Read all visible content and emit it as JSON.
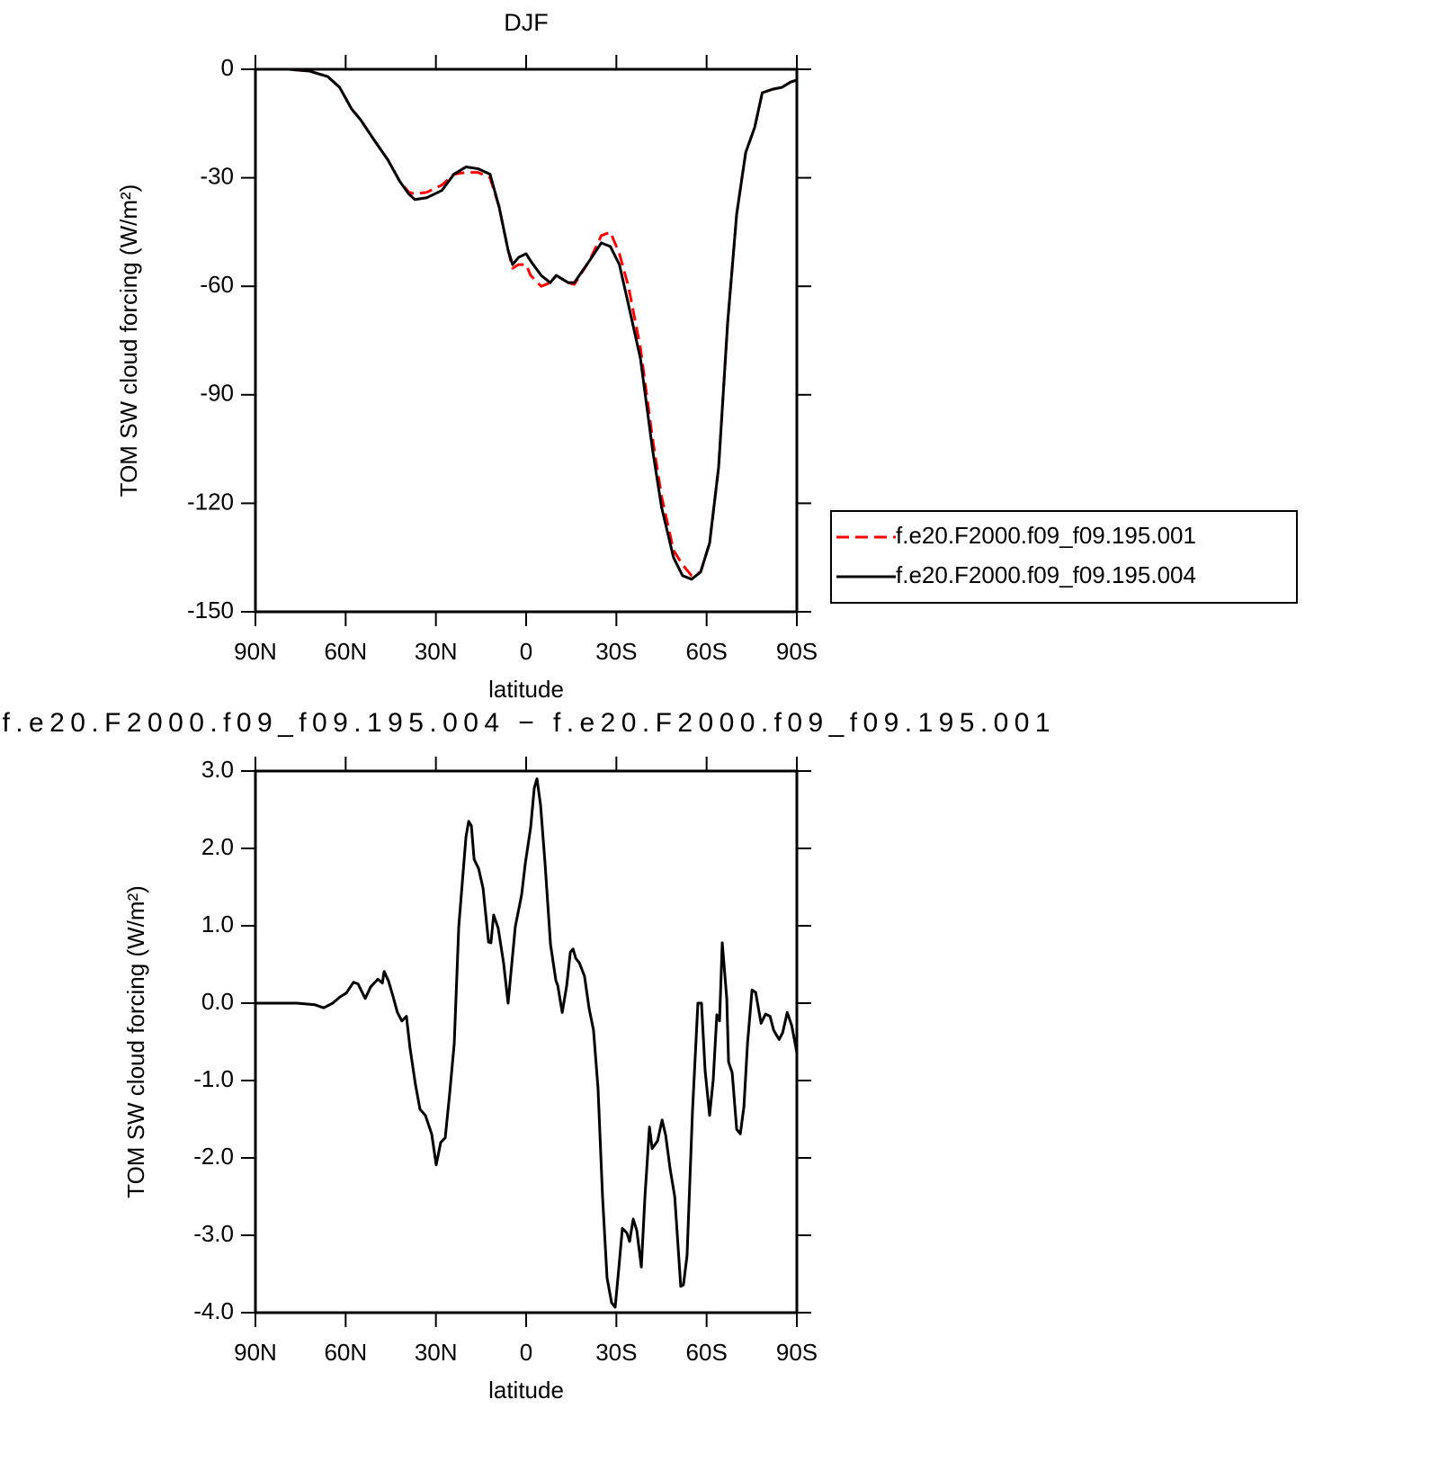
{
  "chart_data": [
    {
      "type": "line",
      "title": "DJF",
      "xlabel": "latitude",
      "ylabel": "TOM SW cloud forcing (W/m²)",
      "xlim": [
        90,
        -90
      ],
      "xticks": [
        {
          "value": 90,
          "label": "90N"
        },
        {
          "value": 60,
          "label": "60N"
        },
        {
          "value": 30,
          "label": "30N"
        },
        0,
        {
          "value": -30,
          "label": "30S"
        },
        {
          "value": -60,
          "label": "60S"
        },
        {
          "value": -90,
          "label": "90S"
        }
      ],
      "ylim": [
        -150,
        0
      ],
      "yticks": [
        0,
        -30,
        -60,
        -90,
        -120,
        -150
      ],
      "legend": "right",
      "x": [
        90,
        79,
        72,
        66,
        62,
        58,
        55,
        51,
        46,
        42,
        39,
        37,
        33,
        28,
        24,
        20,
        16,
        12,
        9,
        6,
        4.5,
        2.5,
        0,
        -1.5,
        -5,
        -8,
        -10,
        -14,
        -16,
        -21,
        -25,
        -28,
        -31,
        -34,
        -38,
        -42,
        -45,
        -49,
        -52,
        -55,
        -58,
        -61,
        -64,
        -67,
        -70,
        -73,
        -76,
        -78.5,
        -82,
        -85,
        -88,
        -90
      ],
      "series": [
        {
          "name": "f.e20.F2000.f09_f09.195.001",
          "color": "#ff0000",
          "linestyle": "dashed",
          "values": [
            0,
            0,
            -0.5,
            -2,
            -5,
            -11,
            -14,
            -19,
            -25,
            -31,
            -34,
            -34.5,
            -34,
            -32,
            -29,
            -28.5,
            -28.5,
            -30,
            -38,
            -50,
            -55,
            -54,
            -54,
            -57,
            -60,
            -59,
            -57,
            -59,
            -59.5,
            -53,
            -46,
            -45,
            -51,
            -60,
            -77,
            -102,
            -118,
            -133,
            -137,
            -140,
            -139,
            -131,
            -110,
            -70,
            -40,
            -23,
            -16,
            -6.5,
            -5.5,
            -5,
            -3.5,
            -3
          ]
        },
        {
          "name": "f.e20.F2000.f09_f09.195.004",
          "color": "#000000",
          "linestyle": "solid",
          "values": [
            0,
            0,
            -0.5,
            -2,
            -5,
            -11,
            -14,
            -19,
            -25,
            -31,
            -34.5,
            -36,
            -35.5,
            -33.5,
            -29,
            -27,
            -27.5,
            -29,
            -38,
            -50,
            -54,
            -52,
            -51,
            -53,
            -57,
            -59,
            -57,
            -59,
            -59,
            -53,
            -48,
            -49,
            -54,
            -65,
            -80,
            -105,
            -121,
            -135,
            -140,
            -141,
            -139,
            -131,
            -110,
            -70,
            -40,
            -23,
            -16,
            -6.5,
            -5.5,
            -5,
            -3.5,
            -3
          ]
        }
      ]
    },
    {
      "type": "line",
      "title": "f.e20.F2000.f09_f09.195.004 − f.e20.F2000.f09_f09.195.001",
      "xlabel": "latitude",
      "ylabel": "TOM SW cloud forcing (W/m²)",
      "xlim": [
        90,
        -90
      ],
      "xticks": [
        {
          "value": 90,
          "label": "90N"
        },
        {
          "value": 60,
          "label": "60N"
        },
        {
          "value": 30,
          "label": "30N"
        },
        0,
        {
          "value": -30,
          "label": "30S"
        },
        {
          "value": -60,
          "label": "60S"
        },
        {
          "value": -90,
          "label": "90S"
        }
      ],
      "ylim": [
        -4,
        3
      ],
      "yticks": [
        {
          "value": 3,
          "label": "3.0"
        },
        {
          "value": 2,
          "label": "2.0"
        },
        {
          "value": 1,
          "label": "1.0"
        },
        {
          "value": 0,
          "label": "0.0"
        },
        {
          "value": -1,
          "label": "-1.0"
        },
        {
          "value": -2,
          "label": "-2.0"
        },
        {
          "value": -3,
          "label": "-3.0"
        },
        {
          "value": -4,
          "label": "-4.0"
        }
      ],
      "x": [
        90,
        76.2,
        70.3,
        67.3,
        64.3,
        61.9,
        59.8,
        57.4,
        55.9,
        53.5,
        51.7,
        49.3,
        47.8,
        47.2,
        45.7,
        44.2,
        42.8,
        41.3,
        39.8,
        38.6,
        36.8,
        35.3,
        33.5,
        31.4,
        29.9,
        28.4,
        26.9,
        25.4,
        23.9,
        22.4,
        20,
        19.1,
        18.2,
        17.3,
        15.8,
        14.3,
        12.5,
        11.7,
        10.8,
        9.3,
        7.5,
        6,
        3.6,
        1.5,
        0.3,
        -1.5,
        -2.7,
        -3.6,
        -4.8,
        -6.3,
        -8.1,
        -9.9,
        -10.5,
        -12,
        -13.5,
        -14.7,
        -15.6,
        -16.5,
        -17.7,
        -19.4,
        -20.9,
        -22.4,
        -23.9,
        -25.4,
        -26.9,
        -28.4,
        -29.6,
        -30.8,
        -32,
        -33.5,
        -34.4,
        -35.6,
        -36.8,
        -38.3,
        -39.5,
        -41,
        -41.9,
        -43.7,
        -45.2,
        -46.4,
        -47.9,
        -49.4,
        -51.4,
        -52.3,
        -53.5,
        -55.3,
        -57.1,
        -58.3,
        -59.5,
        -61,
        -62.2,
        -63.4,
        -64.3,
        -65.2,
        -66.7,
        -67.3,
        -68.5,
        -70,
        -71.2,
        -72.4,
        -73.6,
        -75.1,
        -76.3,
        -78.1,
        -79.6,
        -81.1,
        -82.3,
        -84.1,
        -85.3,
        -86.8,
        -88.3,
        -90
      ],
      "series": [
        {
          "name": "f.e20.F2000.f09_f09.195.004 − f.e20.F2000.f09_f09.195.001",
          "color": "#000000",
          "linestyle": "solid",
          "values": [
            0,
            0,
            -0.02,
            -0.06,
            0,
            0.08,
            0.13,
            0.27,
            0.25,
            0.06,
            0.21,
            0.31,
            0.26,
            0.41,
            0.28,
            0.08,
            -0.12,
            -0.23,
            -0.17,
            -0.58,
            -1.05,
            -1.37,
            -1.45,
            -1.69,
            -2.09,
            -1.8,
            -1.74,
            -1.16,
            -0.52,
            0.99,
            2.15,
            2.35,
            2.29,
            1.86,
            1.74,
            1.48,
            0.79,
            0.78,
            1.14,
            0.97,
            0.52,
            0,
            0.99,
            1.4,
            1.8,
            2.27,
            2.78,
            2.9,
            2.56,
            1.8,
            0.76,
            0.29,
            0.23,
            -0.12,
            0.23,
            0.66,
            0.7,
            0.58,
            0.52,
            0.35,
            -0.06,
            -0.35,
            -1.1,
            -2.5,
            -3.55,
            -3.87,
            -3.93,
            -3.43,
            -2.91,
            -2.97,
            -3.08,
            -2.79,
            -2.94,
            -3.41,
            -2.5,
            -1.6,
            -1.88,
            -1.78,
            -1.51,
            -1.71,
            -2.15,
            -2.5,
            -3.66,
            -3.64,
            -3.26,
            -1.4,
            0,
            0,
            -0.87,
            -1.45,
            -0.99,
            -0.15,
            -0.23,
            0.78,
            0.06,
            -0.76,
            -0.9,
            -1.63,
            -1.69,
            -1.34,
            -0.52,
            0.17,
            0.14,
            -0.26,
            -0.14,
            -0.17,
            -0.35,
            -0.47,
            -0.38,
            -0.12,
            -0.29,
            -0.64
          ]
        }
      ]
    }
  ]
}
